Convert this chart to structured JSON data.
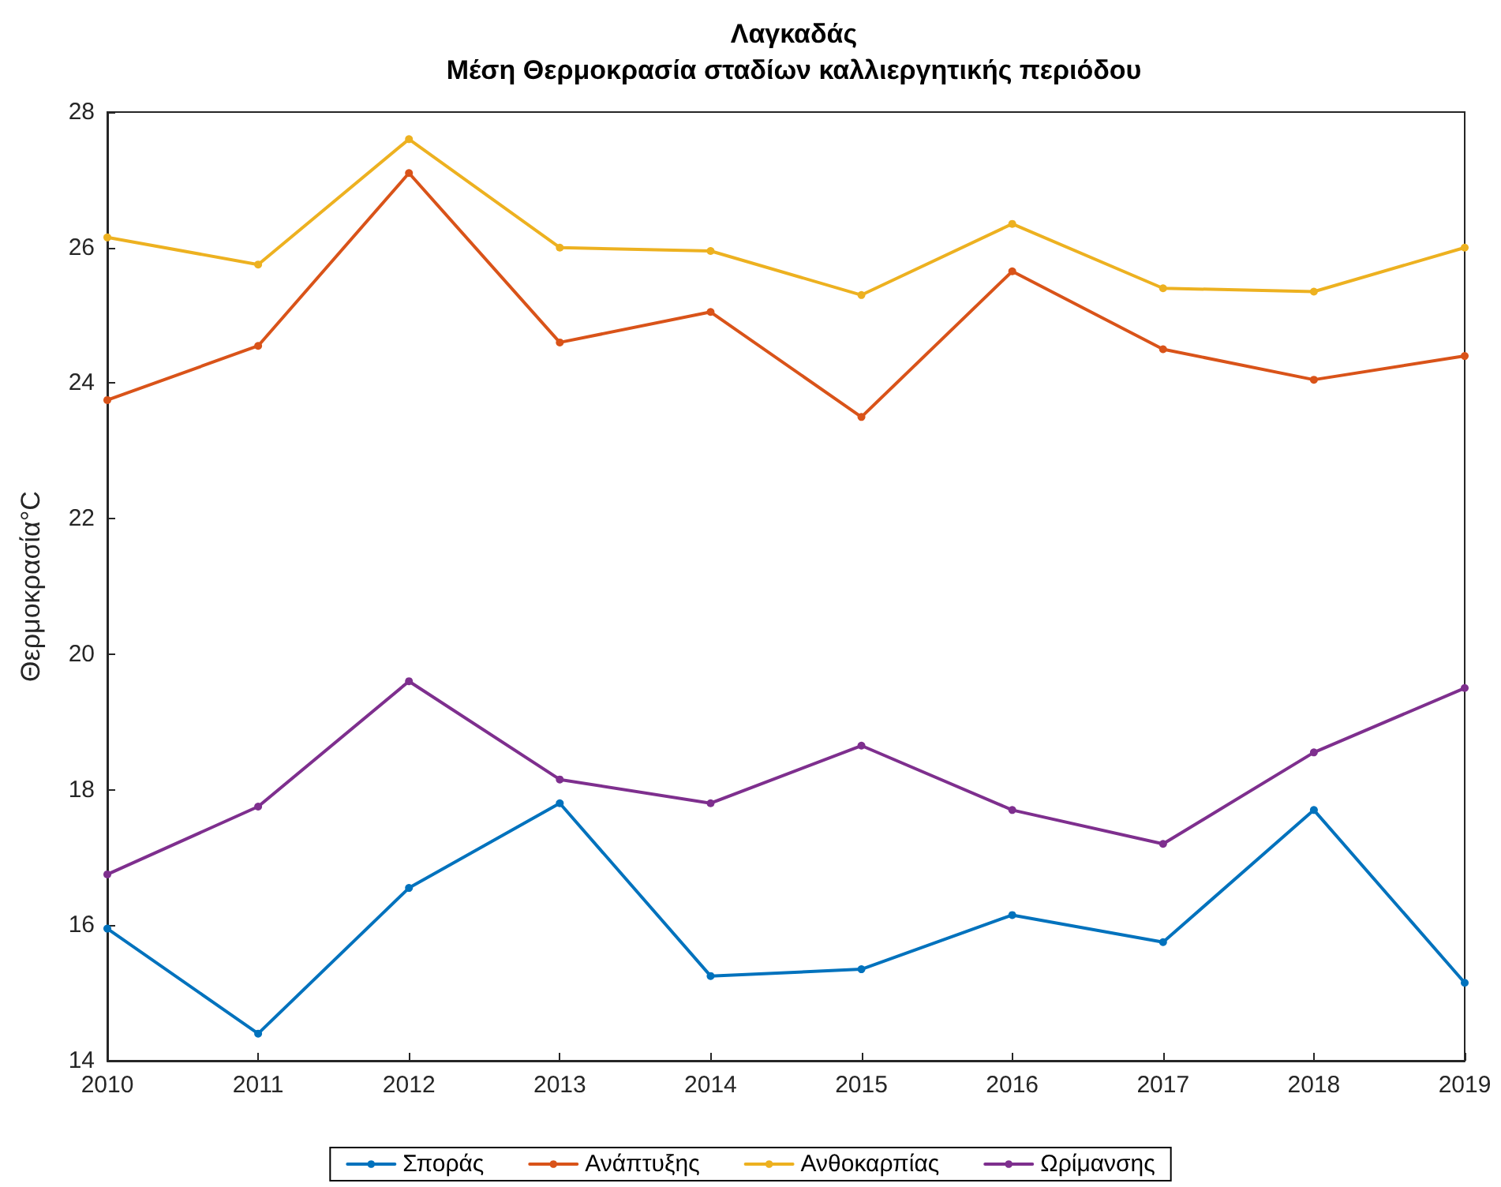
{
  "chart_data": {
    "type": "line",
    "title": "Λαγκαδάς",
    "subtitle": "Μέση Θερμοκρασία σταδίων καλλιεργητικής περιόδου",
    "ylabel": "Θερμοκρασία°C",
    "x": [
      2010,
      2011,
      2012,
      2013,
      2014,
      2015,
      2016,
      2017,
      2018,
      2019
    ],
    "series": [
      {
        "name": "Σποράς",
        "color": "#0072bd",
        "values": [
          15.95,
          14.4,
          16.55,
          17.8,
          15.25,
          15.35,
          16.15,
          15.75,
          17.7,
          15.15
        ]
      },
      {
        "name": "Ανάπτυξης",
        "color": "#d95319",
        "values": [
          23.75,
          24.55,
          27.1,
          24.6,
          25.05,
          23.5,
          25.65,
          24.5,
          24.05,
          24.4
        ]
      },
      {
        "name": "Ανθοκαρπίας",
        "color": "#edb120",
        "values": [
          26.15,
          25.75,
          27.6,
          26.0,
          25.95,
          25.3,
          26.35,
          25.4,
          25.35,
          26.0
        ]
      },
      {
        "name": "Ωρίμανσης",
        "color": "#7e2f8e",
        "values": [
          16.75,
          17.75,
          19.6,
          18.15,
          17.8,
          18.65,
          17.7,
          17.2,
          18.55,
          19.5
        ]
      }
    ],
    "xlim": [
      2010,
      2019
    ],
    "xticks": [
      2010,
      2011,
      2012,
      2013,
      2014,
      2015,
      2016,
      2017,
      2018,
      2019
    ],
    "ylim": [
      14,
      28
    ],
    "yticks": [
      14,
      16,
      18,
      20,
      22,
      24,
      26,
      28
    ],
    "grid": false,
    "legend": "bottom",
    "marker": "circle",
    "line_style": "solid"
  }
}
